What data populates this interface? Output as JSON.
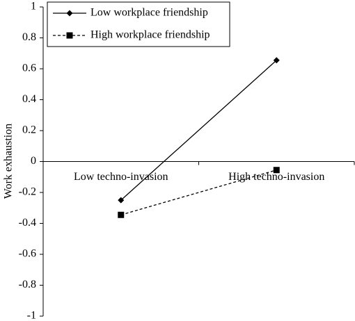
{
  "chart_data": {
    "type": "line",
    "y_label": "Work exhaustion",
    "categories": [
      "Low techno-invasion",
      "High techno-invasion"
    ],
    "series": [
      {
        "name": "Low workplace friendship",
        "color": "#000000",
        "marker": "diamond",
        "line_style": "solid",
        "values": [
          -0.25,
          0.655
        ]
      },
      {
        "name": "High workplace friendship",
        "color": "#000000",
        "marker": "square",
        "line_style": "dashed",
        "values": [
          -0.345,
          -0.055
        ]
      }
    ],
    "ylim": [
      -1,
      1
    ],
    "yticks": [
      -1,
      -0.8,
      -0.6,
      -0.4,
      -0.2,
      0,
      0.2,
      0.4,
      0.6,
      0.8,
      1
    ],
    "legend": "upper left"
  }
}
